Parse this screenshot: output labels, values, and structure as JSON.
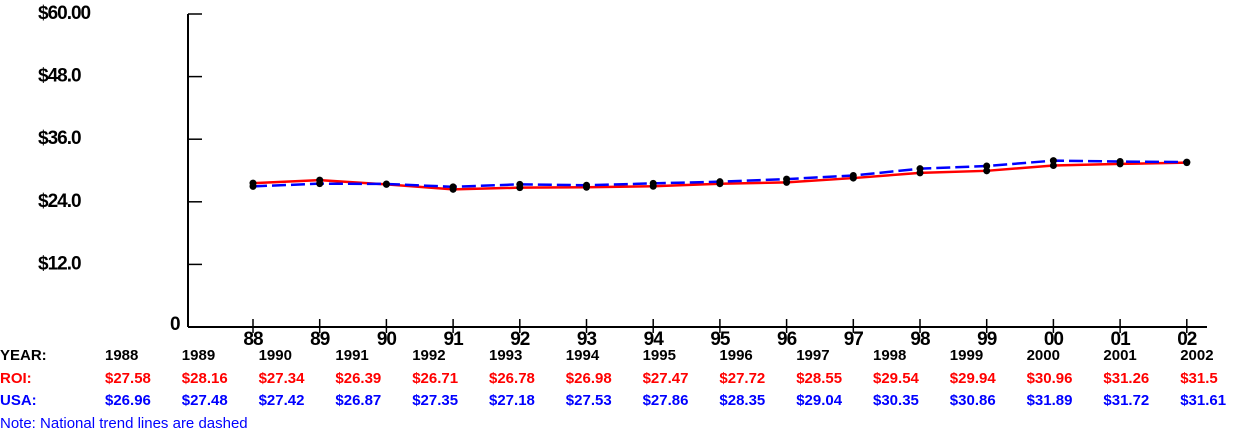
{
  "chart_data": {
    "type": "line",
    "categories": [
      "88",
      "89",
      "90",
      "91",
      "92",
      "93",
      "94",
      "95",
      "96",
      "97",
      "98",
      "99",
      "00",
      "01",
      "02"
    ],
    "series": [
      {
        "name": "ROI:",
        "color": "#ff0000",
        "dashed": false,
        "values": [
          27.58,
          28.16,
          27.34,
          26.39,
          26.71,
          26.78,
          26.98,
          27.47,
          27.72,
          28.55,
          29.54,
          29.94,
          30.96,
          31.26,
          31.5
        ],
        "value_labels": [
          "$27.58",
          "$28.16",
          "$27.34",
          "$26.39",
          "$26.71",
          "$26.78",
          "$26.98",
          "$27.47",
          "$27.72",
          "$28.55",
          "$29.54",
          "$29.94",
          "$30.96",
          "$31.26",
          "$31.5"
        ]
      },
      {
        "name": "USA:",
        "color": "#0000ff",
        "dashed": true,
        "values": [
          26.96,
          27.48,
          27.42,
          26.87,
          27.35,
          27.18,
          27.53,
          27.86,
          28.35,
          29.04,
          30.35,
          30.86,
          31.89,
          31.72,
          31.61
        ],
        "value_labels": [
          "$26.96",
          "$27.48",
          "$27.42",
          "$26.87",
          "$27.35",
          "$27.18",
          "$27.53",
          "$27.86",
          "$28.35",
          "$29.04",
          "$30.35",
          "$30.86",
          "$31.89",
          "$31.72",
          "$31.61"
        ]
      }
    ],
    "ylim": [
      0,
      60
    ],
    "yticks": [
      0,
      {
        "value": 12,
        "label": "$12.0"
      },
      {
        "value": 24,
        "label": "$24.0"
      },
      {
        "value": 36,
        "label": "$36.0"
      },
      {
        "value": 48,
        "label": "$48.0"
      },
      {
        "value": 60,
        "label": "$60.00"
      }
    ],
    "table": {
      "year_header": "YEAR:",
      "years": [
        "1988",
        "1989",
        "1990",
        "1991",
        "1992",
        "1993",
        "1994",
        "1995",
        "1996",
        "1997",
        "1998",
        "1999",
        "2000",
        "2001",
        "2002"
      ]
    },
    "note": "Note: National trend lines are dashed"
  }
}
